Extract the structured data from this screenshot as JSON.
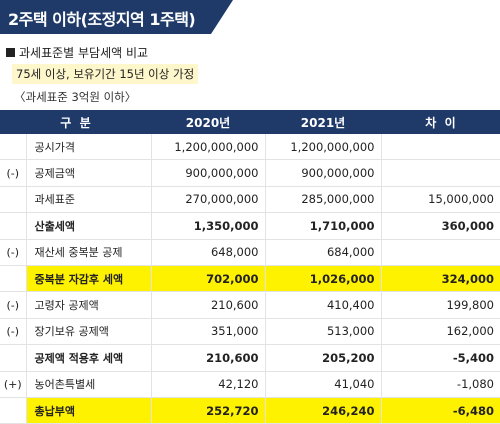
{
  "title": "2주택 이하(조정지역 1주택)",
  "heading": "과세표준별 부담세액 비교",
  "note": "75세 이상, 보유기간 15년 이상 가정",
  "condition": "〈과세표준 3억원 이하〉",
  "colors": {
    "header_bg": "#1f3a68",
    "highlight": "#fff200",
    "note_bg": "#fff7cc"
  },
  "table": {
    "headers": [
      "구  분",
      "2020년",
      "2021년",
      "차  이"
    ],
    "rows": [
      {
        "mark": "",
        "label": "공시가격",
        "y2020": "1,200,000,000",
        "y2021": "1,200,000,000",
        "diff": ""
      },
      {
        "mark": "(-)",
        "label": "공제금액",
        "y2020": "900,000,000",
        "y2021": "900,000,000",
        "diff": ""
      },
      {
        "mark": "",
        "label": "과세표준",
        "y2020": "270,000,000",
        "y2021": "285,000,000",
        "diff": "15,000,000"
      },
      {
        "mark": "",
        "label": "산출세액",
        "y2020": "1,350,000",
        "y2021": "1,710,000",
        "diff": "360,000"
      },
      {
        "mark": "(-)",
        "label": "재산세 중복분 공제",
        "y2020": "648,000",
        "y2021": "684,000",
        "diff": ""
      },
      {
        "mark": "",
        "label": "중복분 자감후 세액",
        "y2020": "702,000",
        "y2021": "1,026,000",
        "diff": "324,000"
      },
      {
        "mark": "(-)",
        "label": "고령자 공제액",
        "y2020": "210,600",
        "y2021": "410,400",
        "diff": "199,800"
      },
      {
        "mark": "(-)",
        "label": "장기보유 공제액",
        "y2020": "351,000",
        "y2021": "513,000",
        "diff": "162,000"
      },
      {
        "mark": "",
        "label": "공제액 적용후 세액",
        "y2020": "210,600",
        "y2021": "205,200",
        "diff": "-5,400"
      },
      {
        "mark": "(+)",
        "label": "농어촌특별세",
        "y2020": "42,120",
        "y2021": "41,040",
        "diff": "-1,080"
      },
      {
        "mark": "",
        "label": "총납부액",
        "y2020": "252,720",
        "y2021": "246,240",
        "diff": "-6,480"
      }
    ]
  }
}
